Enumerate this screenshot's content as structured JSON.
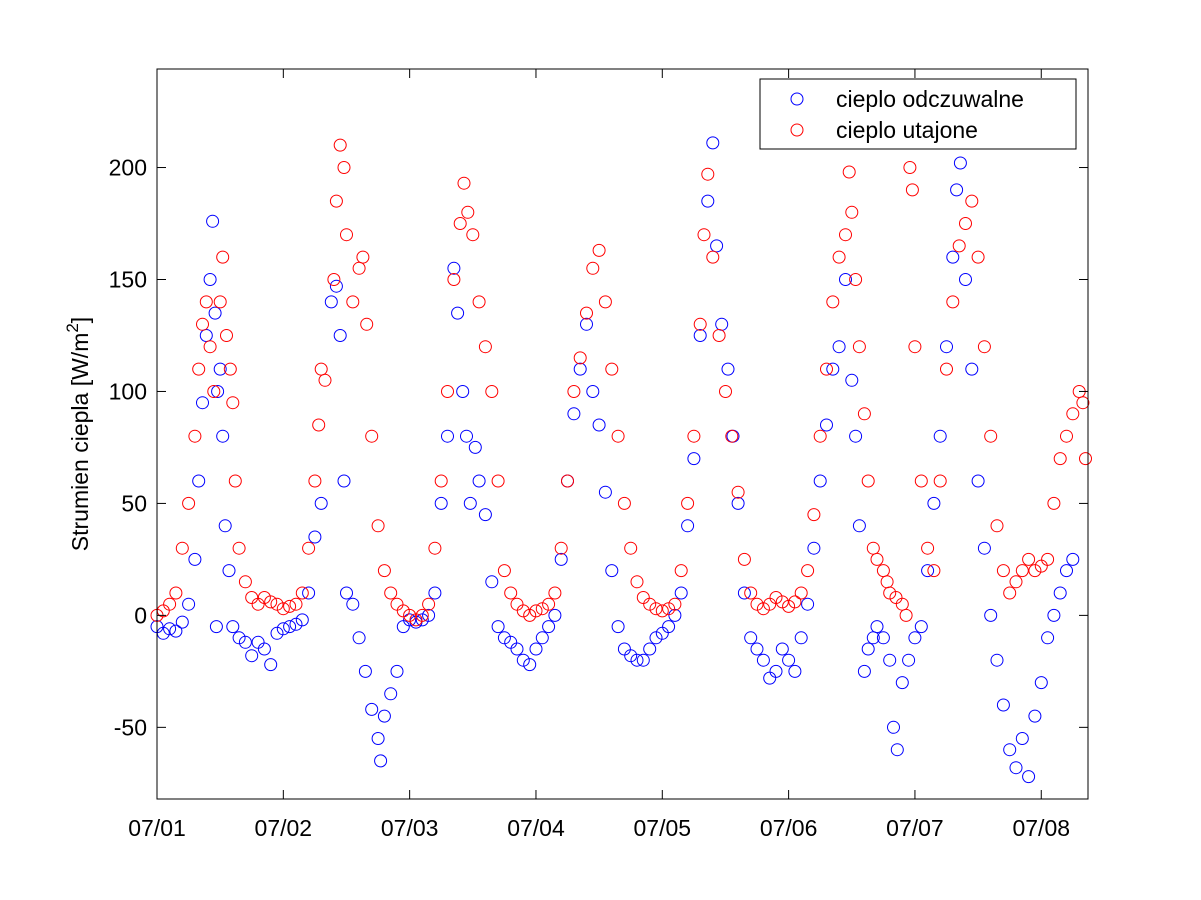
{
  "chart_data": {
    "type": "scatter",
    "ylabel": "Strumien ciepla [W/m",
    "ylabel_sup": "2",
    "ylabel_close": "]",
    "xlabel": "",
    "x_tick_labels": [
      "07/01",
      "07/02",
      "07/03",
      "07/04",
      "07/05",
      "07/06",
      "07/07",
      "07/08"
    ],
    "x_ticks_day": [
      0,
      1,
      2,
      3,
      4,
      5,
      6,
      7
    ],
    "xlim_day": [
      0,
      7.37
    ],
    "y_ticks": [
      -50,
      0,
      50,
      100,
      150,
      200
    ],
    "ylim": [
      -82,
      244
    ],
    "grid": false,
    "legend_position": "top-right",
    "series": [
      {
        "name": "cieplo odczuwalne",
        "color": "#0000ff",
        "marker": "circle-open",
        "points": [
          [
            0.0,
            -5
          ],
          [
            0.05,
            -8
          ],
          [
            0.1,
            -6
          ],
          [
            0.15,
            -7
          ],
          [
            0.2,
            -3
          ],
          [
            0.25,
            5
          ],
          [
            0.3,
            25
          ],
          [
            0.33,
            60
          ],
          [
            0.36,
            95
          ],
          [
            0.39,
            125
          ],
          [
            0.42,
            150
          ],
          [
            0.44,
            176
          ],
          [
            0.46,
            135
          ],
          [
            0.47,
            -5
          ],
          [
            0.48,
            100
          ],
          [
            0.5,
            110
          ],
          [
            0.52,
            80
          ],
          [
            0.54,
            40
          ],
          [
            0.57,
            20
          ],
          [
            0.6,
            -5
          ],
          [
            0.65,
            -10
          ],
          [
            0.7,
            -12
          ],
          [
            0.75,
            -18
          ],
          [
            0.8,
            -12
          ],
          [
            0.85,
            -15
          ],
          [
            0.9,
            -22
          ],
          [
            0.95,
            -8
          ],
          [
            1.0,
            -6
          ],
          [
            1.05,
            -5
          ],
          [
            1.1,
            -4
          ],
          [
            1.15,
            -2
          ],
          [
            1.2,
            10
          ],
          [
            1.25,
            35
          ],
          [
            1.3,
            50
          ],
          [
            1.38,
            140
          ],
          [
            1.42,
            147
          ],
          [
            1.45,
            125
          ],
          [
            1.48,
            60
          ],
          [
            1.5,
            10
          ],
          [
            1.55,
            5
          ],
          [
            1.6,
            -10
          ],
          [
            1.65,
            -25
          ],
          [
            1.7,
            -42
          ],
          [
            1.75,
            -55
          ],
          [
            1.77,
            -65
          ],
          [
            1.8,
            -45
          ],
          [
            1.85,
            -35
          ],
          [
            1.9,
            -25
          ],
          [
            1.95,
            -5
          ],
          [
            2.0,
            -2
          ],
          [
            2.05,
            -3
          ],
          [
            2.1,
            -2
          ],
          [
            2.15,
            0
          ],
          [
            2.2,
            10
          ],
          [
            2.25,
            50
          ],
          [
            2.3,
            80
          ],
          [
            2.35,
            155
          ],
          [
            2.38,
            135
          ],
          [
            2.42,
            100
          ],
          [
            2.45,
            80
          ],
          [
            2.48,
            50
          ],
          [
            2.52,
            75
          ],
          [
            2.55,
            60
          ],
          [
            2.6,
            45
          ],
          [
            2.65,
            15
          ],
          [
            2.7,
            -5
          ],
          [
            2.75,
            -10
          ],
          [
            2.8,
            -12
          ],
          [
            2.85,
            -15
          ],
          [
            2.9,
            -20
          ],
          [
            2.95,
            -22
          ],
          [
            3.0,
            -15
          ],
          [
            3.05,
            -10
          ],
          [
            3.1,
            -5
          ],
          [
            3.15,
            0
          ],
          [
            3.2,
            25
          ],
          [
            3.25,
            60
          ],
          [
            3.3,
            90
          ],
          [
            3.35,
            110
          ],
          [
            3.4,
            130
          ],
          [
            3.45,
            100
          ],
          [
            3.5,
            85
          ],
          [
            3.55,
            55
          ],
          [
            3.6,
            20
          ],
          [
            3.65,
            -5
          ],
          [
            3.7,
            -15
          ],
          [
            3.75,
            -18
          ],
          [
            3.8,
            -20
          ],
          [
            3.85,
            -20
          ],
          [
            3.9,
            -15
          ],
          [
            3.95,
            -10
          ],
          [
            4.0,
            -8
          ],
          [
            4.05,
            -5
          ],
          [
            4.1,
            0
          ],
          [
            4.15,
            10
          ],
          [
            4.2,
            40
          ],
          [
            4.25,
            70
          ],
          [
            4.3,
            125
          ],
          [
            4.36,
            185
          ],
          [
            4.4,
            211
          ],
          [
            4.43,
            165
          ],
          [
            4.47,
            130
          ],
          [
            4.52,
            110
          ],
          [
            4.56,
            80
          ],
          [
            4.6,
            50
          ],
          [
            4.65,
            10
          ],
          [
            4.7,
            -10
          ],
          [
            4.75,
            -15
          ],
          [
            4.8,
            -20
          ],
          [
            4.85,
            -28
          ],
          [
            4.9,
            -25
          ],
          [
            4.95,
            -15
          ],
          [
            5.0,
            -20
          ],
          [
            5.05,
            -25
          ],
          [
            5.1,
            -10
          ],
          [
            5.15,
            5
          ],
          [
            5.2,
            30
          ],
          [
            5.25,
            60
          ],
          [
            5.3,
            85
          ],
          [
            5.35,
            110
          ],
          [
            5.4,
            120
          ],
          [
            5.45,
            150
          ],
          [
            5.5,
            105
          ],
          [
            5.53,
            80
          ],
          [
            5.56,
            40
          ],
          [
            5.6,
            -25
          ],
          [
            5.63,
            -15
          ],
          [
            5.67,
            -10
          ],
          [
            5.7,
            -5
          ],
          [
            5.75,
            -10
          ],
          [
            5.8,
            -20
          ],
          [
            5.83,
            -50
          ],
          [
            5.86,
            -60
          ],
          [
            5.9,
            -30
          ],
          [
            5.95,
            -20
          ],
          [
            6.0,
            -10
          ],
          [
            6.05,
            -5
          ],
          [
            6.1,
            20
          ],
          [
            6.15,
            50
          ],
          [
            6.2,
            80
          ],
          [
            6.25,
            120
          ],
          [
            6.3,
            160
          ],
          [
            6.33,
            190
          ],
          [
            6.36,
            202
          ],
          [
            6.4,
            150
          ],
          [
            6.45,
            110
          ],
          [
            6.5,
            60
          ],
          [
            6.55,
            30
          ],
          [
            6.6,
            0
          ],
          [
            6.65,
            -20
          ],
          [
            6.7,
            -40
          ],
          [
            6.75,
            -60
          ],
          [
            6.8,
            -68
          ],
          [
            6.85,
            -55
          ],
          [
            6.9,
            -72
          ],
          [
            6.95,
            -45
          ],
          [
            7.0,
            -30
          ],
          [
            7.05,
            -10
          ],
          [
            7.1,
            0
          ],
          [
            7.15,
            10
          ],
          [
            7.2,
            20
          ],
          [
            7.25,
            25
          ]
        ]
      },
      {
        "name": "cieplo utajone",
        "color": "#ff0000",
        "marker": "circle-open",
        "points": [
          [
            0.0,
            0
          ],
          [
            0.05,
            2
          ],
          [
            0.1,
            5
          ],
          [
            0.15,
            10
          ],
          [
            0.2,
            30
          ],
          [
            0.25,
            50
          ],
          [
            0.3,
            80
          ],
          [
            0.33,
            110
          ],
          [
            0.36,
            130
          ],
          [
            0.39,
            140
          ],
          [
            0.42,
            120
          ],
          [
            0.45,
            100
          ],
          [
            0.5,
            140
          ],
          [
            0.52,
            160
          ],
          [
            0.55,
            125
          ],
          [
            0.58,
            110
          ],
          [
            0.6,
            95
          ],
          [
            0.62,
            60
          ],
          [
            0.65,
            30
          ],
          [
            0.7,
            15
          ],
          [
            0.75,
            8
          ],
          [
            0.8,
            5
          ],
          [
            0.85,
            8
          ],
          [
            0.9,
            6
          ],
          [
            0.95,
            5
          ],
          [
            1.0,
            3
          ],
          [
            1.05,
            4
          ],
          [
            1.1,
            5
          ],
          [
            1.15,
            10
          ],
          [
            1.2,
            30
          ],
          [
            1.25,
            60
          ],
          [
            1.28,
            85
          ],
          [
            1.3,
            110
          ],
          [
            1.33,
            105
          ],
          [
            1.4,
            150
          ],
          [
            1.42,
            185
          ],
          [
            1.45,
            210
          ],
          [
            1.48,
            200
          ],
          [
            1.5,
            170
          ],
          [
            1.55,
            140
          ],
          [
            1.6,
            155
          ],
          [
            1.63,
            160
          ],
          [
            1.66,
            130
          ],
          [
            1.7,
            80
          ],
          [
            1.75,
            40
          ],
          [
            1.8,
            20
          ],
          [
            1.85,
            10
          ],
          [
            1.9,
            5
          ],
          [
            1.95,
            2
          ],
          [
            2.0,
            0
          ],
          [
            2.05,
            -2
          ],
          [
            2.1,
            0
          ],
          [
            2.15,
            5
          ],
          [
            2.2,
            30
          ],
          [
            2.25,
            60
          ],
          [
            2.3,
            100
          ],
          [
            2.35,
            150
          ],
          [
            2.4,
            175
          ],
          [
            2.43,
            193
          ],
          [
            2.46,
            180
          ],
          [
            2.5,
            170
          ],
          [
            2.55,
            140
          ],
          [
            2.6,
            120
          ],
          [
            2.65,
            100
          ],
          [
            2.7,
            60
          ],
          [
            2.75,
            20
          ],
          [
            2.8,
            10
          ],
          [
            2.85,
            5
          ],
          [
            2.9,
            2
          ],
          [
            2.95,
            0
          ],
          [
            3.0,
            2
          ],
          [
            3.05,
            3
          ],
          [
            3.1,
            5
          ],
          [
            3.15,
            10
          ],
          [
            3.2,
            30
          ],
          [
            3.25,
            60
          ],
          [
            3.3,
            100
          ],
          [
            3.35,
            115
          ],
          [
            3.4,
            135
          ],
          [
            3.45,
            155
          ],
          [
            3.5,
            163
          ],
          [
            3.55,
            140
          ],
          [
            3.6,
            110
          ],
          [
            3.65,
            80
          ],
          [
            3.7,
            50
          ],
          [
            3.75,
            30
          ],
          [
            3.8,
            15
          ],
          [
            3.85,
            8
          ],
          [
            3.9,
            5
          ],
          [
            3.95,
            3
          ],
          [
            4.0,
            2
          ],
          [
            4.05,
            3
          ],
          [
            4.1,
            5
          ],
          [
            4.15,
            20
          ],
          [
            4.2,
            50
          ],
          [
            4.25,
            80
          ],
          [
            4.3,
            130
          ],
          [
            4.33,
            170
          ],
          [
            4.36,
            197
          ],
          [
            4.4,
            160
          ],
          [
            4.45,
            125
          ],
          [
            4.5,
            100
          ],
          [
            4.55,
            80
          ],
          [
            4.6,
            55
          ],
          [
            4.65,
            25
          ],
          [
            4.7,
            10
          ],
          [
            4.75,
            5
          ],
          [
            4.8,
            3
          ],
          [
            4.85,
            5
          ],
          [
            4.9,
            8
          ],
          [
            4.95,
            6
          ],
          [
            5.0,
            4
          ],
          [
            5.05,
            6
          ],
          [
            5.1,
            10
          ],
          [
            5.15,
            20
          ],
          [
            5.2,
            45
          ],
          [
            5.25,
            80
          ],
          [
            5.3,
            110
          ],
          [
            5.35,
            140
          ],
          [
            5.4,
            160
          ],
          [
            5.45,
            170
          ],
          [
            5.48,
            198
          ],
          [
            5.5,
            180
          ],
          [
            5.53,
            150
          ],
          [
            5.56,
            120
          ],
          [
            5.6,
            90
          ],
          [
            5.63,
            60
          ],
          [
            5.67,
            30
          ],
          [
            5.7,
            25
          ],
          [
            5.75,
            20
          ],
          [
            5.78,
            15
          ],
          [
            5.8,
            10
          ],
          [
            5.85,
            8
          ],
          [
            5.9,
            5
          ],
          [
            5.93,
            0
          ],
          [
            5.96,
            200
          ],
          [
            5.98,
            190
          ],
          [
            6.0,
            120
          ],
          [
            6.05,
            60
          ],
          [
            6.1,
            30
          ],
          [
            6.15,
            20
          ],
          [
            6.2,
            60
          ],
          [
            6.25,
            110
          ],
          [
            6.3,
            140
          ],
          [
            6.35,
            165
          ],
          [
            6.4,
            175
          ],
          [
            6.45,
            185
          ],
          [
            6.5,
            160
          ],
          [
            6.55,
            120
          ],
          [
            6.6,
            80
          ],
          [
            6.65,
            40
          ],
          [
            6.7,
            20
          ],
          [
            6.75,
            10
          ],
          [
            6.8,
            15
          ],
          [
            6.85,
            20
          ],
          [
            6.9,
            25
          ],
          [
            6.95,
            20
          ],
          [
            7.0,
            22
          ],
          [
            7.05,
            25
          ],
          [
            7.1,
            50
          ],
          [
            7.15,
            70
          ],
          [
            7.2,
            80
          ],
          [
            7.25,
            90
          ],
          [
            7.3,
            100
          ],
          [
            7.33,
            95
          ],
          [
            7.35,
            70
          ]
        ]
      }
    ]
  }
}
